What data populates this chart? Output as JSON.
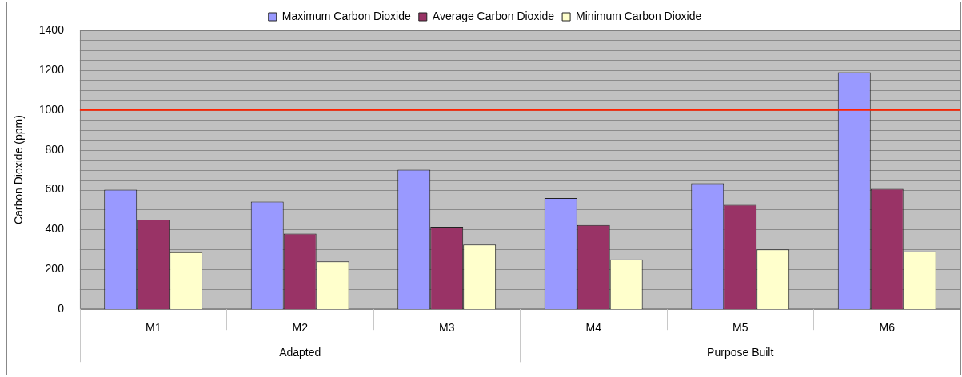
{
  "chart_data": {
    "type": "bar",
    "ylabel": "Carbon Dioxide (ppm)",
    "categories": [
      "M1",
      "M2",
      "M3",
      "M4",
      "M5",
      "M6"
    ],
    "series": [
      {
        "name": "Maximum Carbon Dioxide",
        "color": "#9999ff",
        "values": [
          600,
          540,
          700,
          558,
          632,
          1190
        ]
      },
      {
        "name": "Average Carbon Dioxide",
        "color": "#993366",
        "values": [
          450,
          380,
          414,
          423,
          524,
          604
        ]
      },
      {
        "name": "Minimum Carbon Dioxide",
        "color": "#ffffcc",
        "values": [
          286,
          240,
          325,
          250,
          300,
          290
        ]
      }
    ],
    "ylim": [
      0,
      1400
    ],
    "yticks": [
      0,
      200,
      400,
      600,
      800,
      1000,
      1200,
      1400
    ],
    "ref_lines": [
      {
        "axis": "y",
        "value": 1000,
        "color": "#ff2200"
      }
    ],
    "annotations": [
      "Adapted",
      "Purpose Built"
    ],
    "grid": "y",
    "legend": "top"
  }
}
